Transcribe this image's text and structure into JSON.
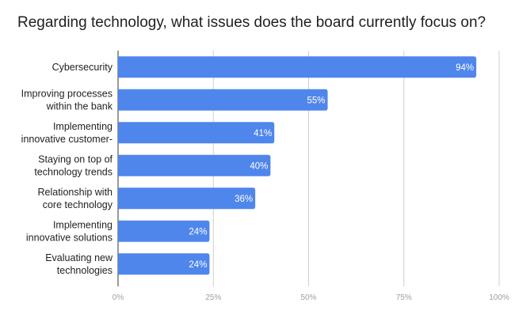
{
  "chart_data": {
    "type": "bar",
    "orientation": "horizontal",
    "title": "Regarding technology, what issues does the board currently focus on?",
    "xlabel": "",
    "ylabel": "",
    "categories": [
      [
        "Cybersecurity"
      ],
      [
        "Improving processes",
        "within the bank"
      ],
      [
        "Implementing",
        "innovative customer-"
      ],
      [
        "Staying on top of",
        "technology trends"
      ],
      [
        "Relationship with",
        "core technology"
      ],
      [
        "Implementing",
        "innovative solutions"
      ],
      [
        "Evaluating new",
        "technologies"
      ]
    ],
    "values": [
      94,
      55,
      41,
      40,
      36,
      24,
      24
    ],
    "data_labels": [
      "94%",
      "55%",
      "41%",
      "40%",
      "36%",
      "24%",
      "24%"
    ],
    "xlim": [
      0,
      100
    ],
    "ticks": [
      0,
      25,
      50,
      75,
      100
    ],
    "tick_labels": [
      "0%",
      "25%",
      "50%",
      "75%",
      "100%"
    ],
    "grid": true,
    "legend": "none",
    "colors": {
      "bar": "#4f86ec",
      "grid": "#cfcfcf",
      "axis": "#333333"
    }
  }
}
